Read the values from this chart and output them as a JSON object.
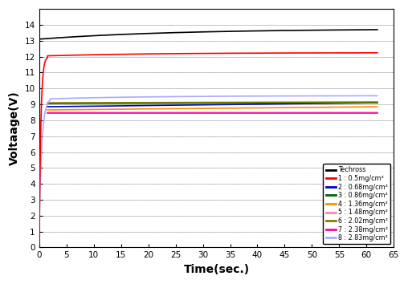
{
  "title": "",
  "xlabel": "Time(sec.)",
  "ylabel": "Voltaage(V)",
  "xlim": [
    0,
    65
  ],
  "ylim": [
    0,
    15
  ],
  "yticks": [
    0,
    1,
    2,
    3,
    4,
    5,
    6,
    7,
    8,
    9,
    10,
    11,
    12,
    13,
    14
  ],
  "xticks": [
    0,
    5,
    10,
    15,
    20,
    25,
    30,
    35,
    40,
    45,
    50,
    55,
    60,
    65
  ],
  "background_color": "#ffffff",
  "series": [
    {
      "label": "Techross",
      "color": "#000000",
      "type": "slow_rise",
      "lw": 1.2
    },
    {
      "label": "1 : 0.5mg/cm²",
      "color": "#ff0000",
      "type": "fast_rise",
      "lw": 1.2
    },
    {
      "label": "2 : 0.68mg/cm²",
      "color": "#0000cc",
      "start_y": 8.85,
      "end_y": 9.1,
      "type": "flat",
      "lw": 1.2
    },
    {
      "label": "3 : 0.86mg/cm²",
      "color": "#006400",
      "start_y": 9.05,
      "end_y": 9.1,
      "type": "flat",
      "lw": 1.2
    },
    {
      "label": "4 : 1.36mg/cm²",
      "color": "#ff8c00",
      "start_y": 8.65,
      "end_y": 8.85,
      "type": "flat",
      "lw": 1.2
    },
    {
      "label": "5 : 1.48mg/cm²",
      "color": "#ff80c0",
      "start_y": 8.5,
      "end_y": 8.5,
      "type": "flat",
      "lw": 1.2
    },
    {
      "label": "6 : 2.02mg/cm²",
      "color": "#808000",
      "start_y": 9.1,
      "end_y": 9.15,
      "type": "flat",
      "lw": 1.2
    },
    {
      "label": "7 : 2.38mg/cm²",
      "color": "#ff00aa",
      "start_y": 8.45,
      "end_y": 8.45,
      "type": "flat",
      "lw": 1.2
    },
    {
      "label": "8 : 2.83mg/cm²",
      "color": "#aaaaff",
      "type": "fast_rise_from_low",
      "lw": 1.2
    }
  ]
}
